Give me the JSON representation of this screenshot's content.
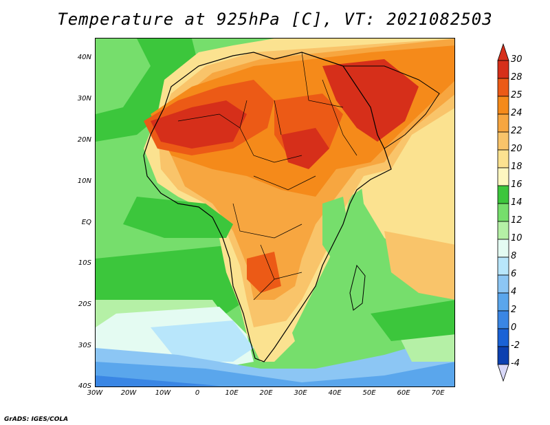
{
  "title": "Temperature at 925hPa [C], VT: 2021082503",
  "footer": "GrADS: IGES/COLA",
  "axes": {
    "y_labels": [
      "40N",
      "30N",
      "20N",
      "10N",
      "EQ",
      "10S",
      "20S",
      "30S",
      "40S"
    ],
    "x_labels": [
      "30W",
      "20W",
      "10W",
      "0",
      "10E",
      "20E",
      "30E",
      "40E",
      "50E",
      "60E",
      "70E"
    ]
  },
  "colorbar": {
    "labels": [
      "30",
      "28",
      "25",
      "24",
      "22",
      "20",
      "18",
      "16",
      "14",
      "12",
      "10",
      "8",
      "6",
      "4",
      "2",
      "0",
      "-2",
      "-4"
    ],
    "colors": [
      "#d62f1a",
      "#ec5a16",
      "#f58a1a",
      "#f7a640",
      "#f9c46a",
      "#fbe290",
      "#fdf7c0",
      "#3cc63c",
      "#76de6c",
      "#b5f0a6",
      "#e4fbf2",
      "#b8e6fb",
      "#8cc6f4",
      "#5aa6ec",
      "#3a86e4",
      "#1a62d6",
      "#0c40b0",
      "#0a1e7c"
    ]
  }
}
